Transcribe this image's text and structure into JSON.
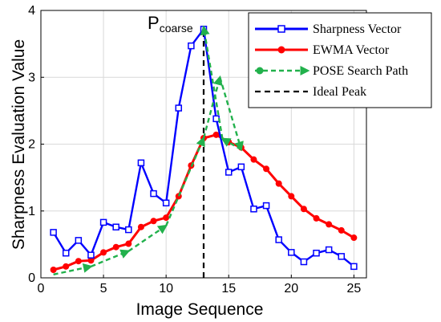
{
  "chart_data": {
    "type": "line",
    "xlabel": "Image Sequence",
    "ylabel": "Sharpness Evaluation Value",
    "xlim": [
      0,
      26
    ],
    "ylim": [
      0,
      4
    ],
    "xticks": [
      0,
      5,
      10,
      15,
      20,
      25
    ],
    "yticks": [
      0,
      1,
      2,
      3,
      4
    ],
    "grid": true,
    "legend_position": "top-right",
    "annotation": {
      "main": "P",
      "sub": "coarse",
      "x": 13
    },
    "series": [
      {
        "name": "Sharpness Vector",
        "color": "#0000ff",
        "marker": "square-open",
        "style": "solid",
        "x": [
          1,
          2,
          3,
          4,
          5,
          6,
          7,
          8,
          9,
          10,
          11,
          12,
          13,
          14,
          15,
          16,
          17,
          18,
          19,
          20,
          21,
          22,
          23,
          24,
          25
        ],
        "y": [
          0.68,
          0.37,
          0.56,
          0.34,
          0.83,
          0.76,
          0.72,
          1.72,
          1.26,
          1.12,
          2.54,
          3.47,
          3.72,
          2.38,
          1.58,
          1.66,
          1.03,
          1.08,
          0.57,
          0.38,
          0.24,
          0.37,
          0.42,
          0.32,
          0.17
        ]
      },
      {
        "name": "EWMA Vector",
        "color": "#ff0000",
        "marker": "circle-filled",
        "style": "solid",
        "x": [
          1,
          2,
          3,
          4,
          5,
          6,
          7,
          8,
          9,
          10,
          11,
          12,
          13,
          14,
          15,
          16,
          17,
          18,
          19,
          20,
          21,
          22,
          23,
          24,
          25
        ],
        "y": [
          0.12,
          0.17,
          0.25,
          0.26,
          0.38,
          0.46,
          0.51,
          0.76,
          0.85,
          0.9,
          1.22,
          1.68,
          2.09,
          2.14,
          2.03,
          1.95,
          1.77,
          1.63,
          1.41,
          1.22,
          1.03,
          0.89,
          0.8,
          0.71,
          0.6
        ]
      },
      {
        "name": "POSE Search Path",
        "color": "#22b14c",
        "marker": "circle-filled",
        "style": "dashed-arrow",
        "x": [
          1,
          4,
          7,
          10,
          13,
          14.3,
          16,
          14.5,
          13
        ],
        "y": [
          0.05,
          0.17,
          0.4,
          0.78,
          2.09,
          3.0,
          1.92,
          2.08,
          3.75
        ]
      },
      {
        "name": "Ideal Peak",
        "color": "#000000",
        "marker": "none",
        "style": "dashed",
        "x": [
          13,
          13
        ],
        "y": [
          0,
          3.72
        ]
      }
    ]
  }
}
